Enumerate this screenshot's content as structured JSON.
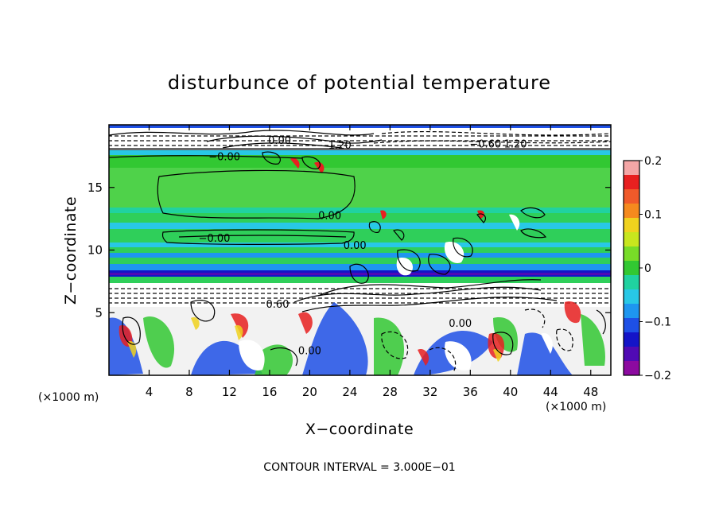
{
  "chart_data": {
    "type": "heatmap",
    "title": "disturbunce of potential temperature",
    "xlabel": "X−coordinate",
    "ylabel": "Z−coordinate",
    "x_unit": "(×1000 m)",
    "y_unit": "(×1000 m)",
    "xlim": [
      0,
      50
    ],
    "ylim": [
      0,
      20
    ],
    "xticks": [
      4,
      8,
      12,
      16,
      20,
      24,
      28,
      32,
      36,
      40,
      44,
      48
    ],
    "xtick_labels": [
      "4",
      "8",
      "12",
      "16",
      "20",
      "24",
      "28",
      "32",
      "36",
      "40",
      "44",
      "48"
    ],
    "yticks": [
      5,
      10,
      15
    ],
    "ytick_labels": [
      "5",
      "10",
      "15"
    ],
    "footer": "CONTOUR INTERVAL = 3.000E−01",
    "colorbar": {
      "range": [
        -0.2,
        0.2
      ],
      "ticks": [
        0.2,
        0.1,
        0,
        -0.1,
        -0.2
      ],
      "tick_labels": [
        "0.2",
        "0.1",
        "0",
        "−0.1",
        "−0.2"
      ],
      "colors": [
        "#f4a6a6",
        "#e82020",
        "#f05a2a",
        "#f58a1e",
        "#f0d21e",
        "#c8e61e",
        "#78dc28",
        "#32c832",
        "#20d2a0",
        "#28c8e6",
        "#1e96f0",
        "#1e50e6",
        "#1414c8",
        "#500ab4",
        "#8c0aa0"
      ]
    },
    "contour_labels": [
      {
        "text": "0.00",
        "x": 17.0,
        "z": 18.8
      },
      {
        "text": "1.20",
        "x": 23.0,
        "z": 18.4
      },
      {
        "text": "−0.60",
        "x": 37.5,
        "z": 18.5
      },
      {
        "text": "1.20",
        "x": 40.5,
        "z": 18.5
      },
      {
        "text": "−0.00",
        "x": 11.5,
        "z": 17.5
      },
      {
        "text": "0.00",
        "x": 22.0,
        "z": 12.8
      },
      {
        "text": "−0.00",
        "x": 10.5,
        "z": 11.0
      },
      {
        "text": "0.00",
        "x": 24.5,
        "z": 10.4
      },
      {
        "text": "0.60",
        "x": 16.8,
        "z": 5.7
      },
      {
        "text": "0.00",
        "x": 20.0,
        "z": 2.0
      },
      {
        "text": "0.00",
        "x": 35.0,
        "z": 4.2
      }
    ]
  }
}
